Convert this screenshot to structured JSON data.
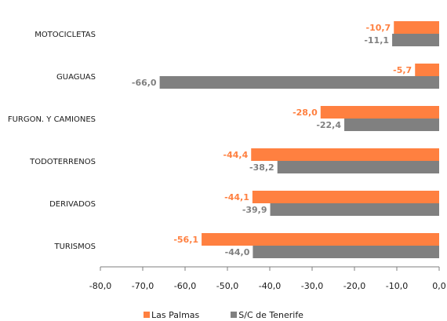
{
  "chart_data": {
    "type": "bar",
    "orientation": "horizontal",
    "categories": [
      "MOTOCICLETAS",
      "GUAGUAS",
      "FURGON. Y CAMIONES",
      "TODOTERRENOS",
      "DERIVADOS",
      "TURISMOS"
    ],
    "series": [
      {
        "name": "Las Palmas",
        "color": "#ff8040",
        "values": [
          -10.7,
          -5.7,
          -28.0,
          -44.4,
          -44.1,
          -56.1
        ],
        "labels": [
          "-10,7",
          "-5,7",
          "-28,0",
          "-44,4",
          "-44,1",
          "-56,1"
        ]
      },
      {
        "name": "S/C de Tenerife",
        "color": "#808080",
        "values": [
          -11.1,
          -66.0,
          -22.4,
          -38.2,
          -39.9,
          -44.0
        ],
        "labels": [
          "-11,1",
          "-66,0",
          "-22,4",
          "-38,2",
          "-39,9",
          "-44,0"
        ]
      }
    ],
    "xlim": [
      -80,
      0
    ],
    "xticks": [
      -80,
      -70,
      -60,
      -50,
      -40,
      -30,
      -20,
      -10,
      0
    ],
    "xtick_labels": [
      "-80,0",
      "-70,0",
      "-60,0",
      "-50,0",
      "-40,0",
      "-30,0",
      "-20,0",
      "-10,0",
      "0,0"
    ],
    "title": "",
    "xlabel": "",
    "ylabel": "",
    "grid": false,
    "legend_position": "bottom"
  }
}
